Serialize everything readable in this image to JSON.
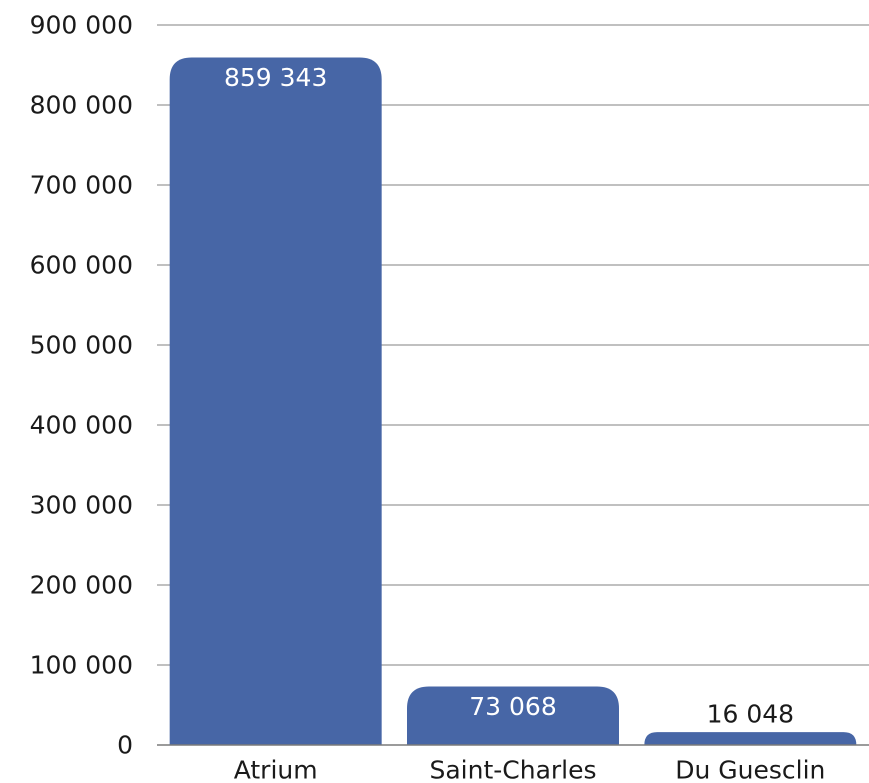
{
  "chart_data": {
    "type": "bar",
    "title": "",
    "xlabel": "",
    "ylabel": "",
    "categories": [
      "Atrium",
      "Saint-Charles",
      "Du Guesclin"
    ],
    "values": [
      859343,
      73068,
      16048
    ],
    "data_labels": [
      "859 343",
      "73 068",
      "16 048"
    ],
    "ylim": [
      0,
      900000
    ],
    "yticks": [
      0,
      100000,
      200000,
      300000,
      400000,
      500000,
      600000,
      700000,
      800000,
      900000
    ],
    "ytick_labels": [
      "0",
      "100 000",
      "200 000",
      "300 000",
      "400 000",
      "500 000",
      "600 000",
      "700 000",
      "800 000",
      "900 000"
    ],
    "grid": true,
    "legend": "none",
    "colors": {
      "bar": "#4766a6",
      "label_inside": "#ffffff",
      "label_outside": "#1a1a1a"
    }
  }
}
